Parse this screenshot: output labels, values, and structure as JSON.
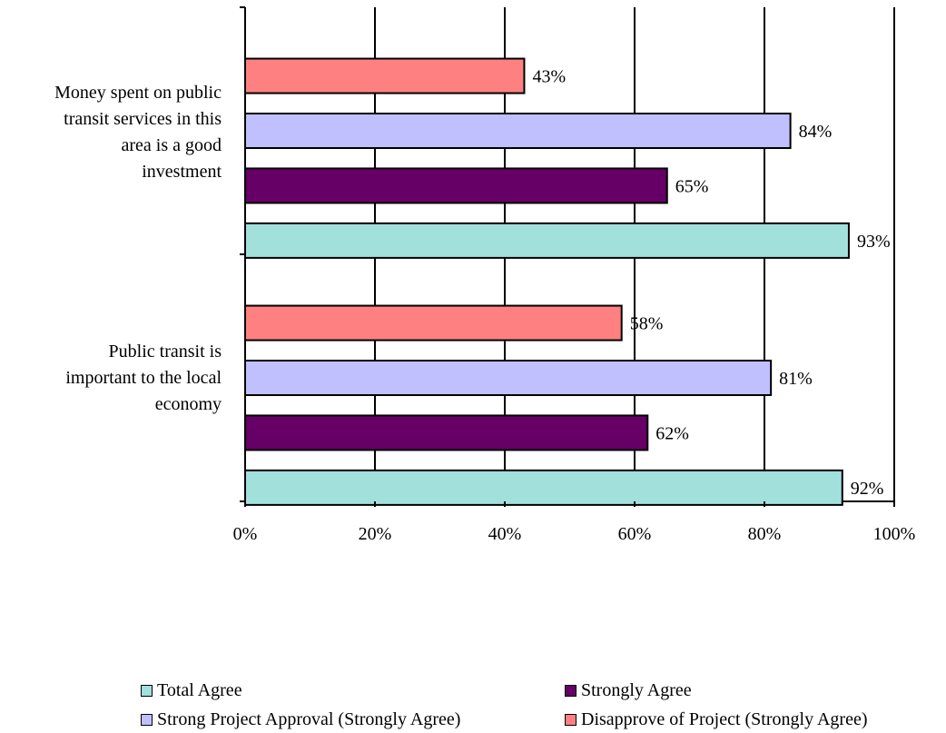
{
  "chart_data": {
    "type": "bar",
    "orientation": "horizontal",
    "categories": [
      "Money spent on public\ntransit services in this\narea is a good\ninvestment",
      "Public transit is\nimportant to the local\neconomy"
    ],
    "series": [
      {
        "name": "Total Agree",
        "color": "#a2e0dc",
        "values": [
          93,
          92
        ],
        "labels": [
          "93%",
          "92%"
        ]
      },
      {
        "name": "Strongly Agree",
        "color": "#660066",
        "values": [
          65,
          62
        ],
        "labels": [
          "65%",
          "62%"
        ]
      },
      {
        "name": "Strong Project Approval (Strongly Agree)",
        "color": "#c0c0ff",
        "values": [
          84,
          81
        ],
        "labels": [
          "84%",
          "81%"
        ]
      },
      {
        "name": "Disapprove of Project (Strongly Agree)",
        "color": "#ff8080",
        "values": [
          43,
          58
        ],
        "labels": [
          "43%",
          "58%"
        ]
      }
    ],
    "x_ticks": [
      "0%",
      "20%",
      "40%",
      "60%",
      "80%",
      "100%"
    ],
    "xlim": [
      0,
      100
    ],
    "grid": "vertical major gridlines",
    "legend_position": "bottom"
  }
}
